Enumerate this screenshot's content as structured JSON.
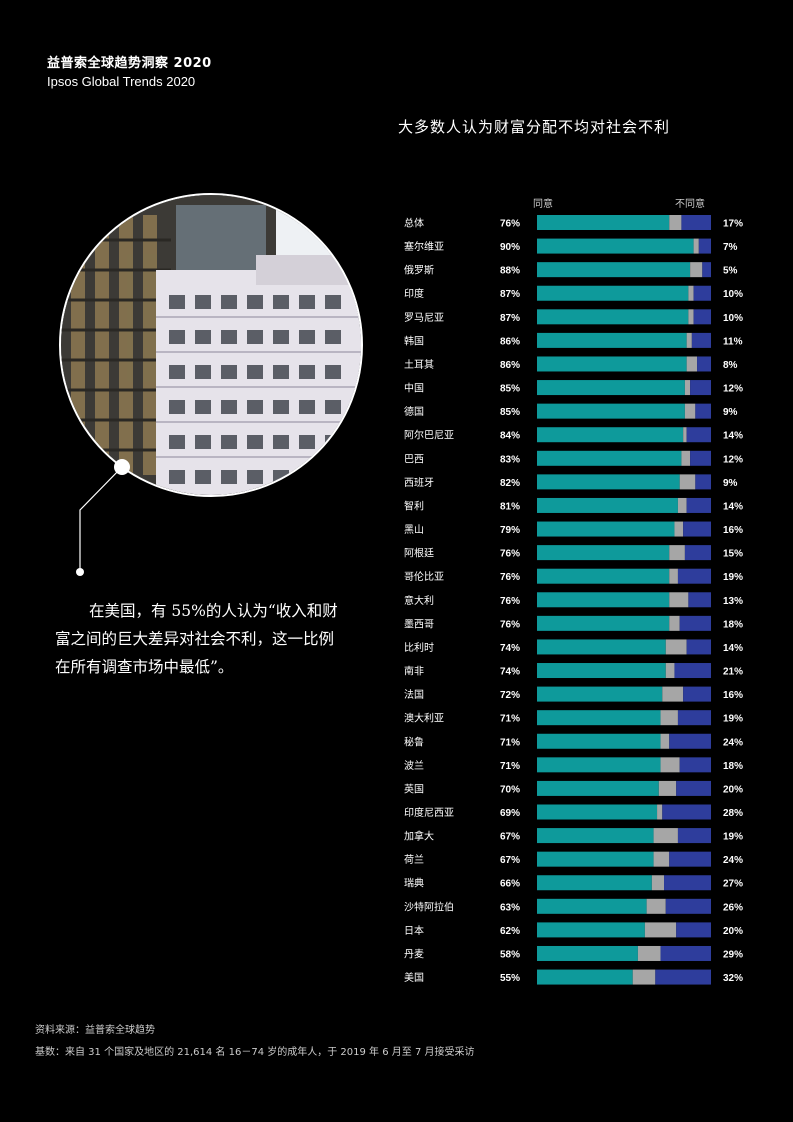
{
  "header": {
    "brand_cn": "益普索全球趋势洞察 2020",
    "brand_en": "Ipsos Global Trends 2020"
  },
  "callout": {
    "text": "在美国，有 55%的人认为“收入和财富之间的巨大差异对社会不利，这一比例在所有调查市场中最低”。"
  },
  "footer": {
    "source": "资料来源：益普索全球趋势",
    "base": "基数：来自 31 个国家及地区的 21,614 名 16－74 岁的成年人，于 2019 年 6 月至 7 月接受采访"
  },
  "colors": {
    "agree": "#0e9a9b",
    "neutral": "#a6a6a6",
    "disagree": "#2e3d9c",
    "background": "#000000"
  },
  "chart_data": {
    "type": "bar",
    "orientation": "horizontal",
    "stacked": true,
    "title": "大多数人认为财富分配不均对社会不利",
    "legend": {
      "agree": "同意",
      "disagree": "不同意"
    },
    "categories": [
      "总体",
      "塞尔维亚",
      "俄罗斯",
      "印度",
      "罗马尼亚",
      "韩国",
      "土耳其",
      "中国",
      "德国",
      "阿尔巴尼亚",
      "巴西",
      "西班牙",
      "智利",
      "黑山",
      "阿根廷",
      "哥伦比亚",
      "意大利",
      "墨西哥",
      "比利时",
      "南非",
      "法国",
      "澳大利亚",
      "秘鲁",
      "波兰",
      "英国",
      "印度尼西亚",
      "加拿大",
      "荷兰",
      "瑞典",
      "沙特阿拉伯",
      "日本",
      "丹麦",
      "美国"
    ],
    "agree": [
      76,
      90,
      88,
      87,
      87,
      86,
      86,
      85,
      85,
      84,
      83,
      82,
      81,
      79,
      76,
      76,
      76,
      76,
      74,
      74,
      72,
      71,
      71,
      71,
      70,
      69,
      67,
      67,
      66,
      63,
      62,
      58,
      55
    ],
    "disagree": [
      17,
      7,
      5,
      10,
      10,
      11,
      8,
      12,
      9,
      14,
      12,
      9,
      14,
      16,
      15,
      19,
      13,
      18,
      14,
      21,
      16,
      19,
      24,
      18,
      20,
      28,
      19,
      24,
      27,
      26,
      20,
      29,
      32
    ],
    "xlim": [
      0,
      100
    ],
    "value_format": "{v}%"
  }
}
